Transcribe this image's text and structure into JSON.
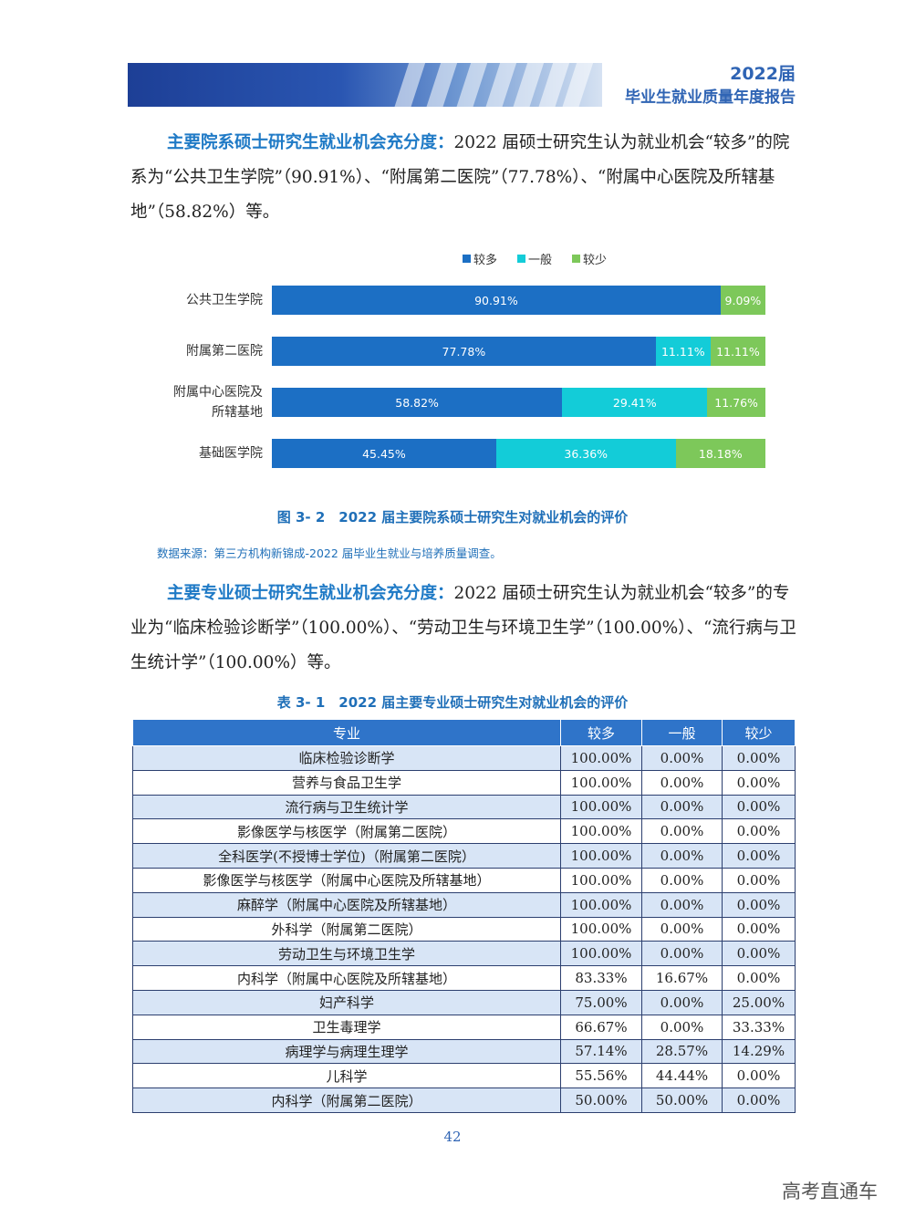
{
  "header": {
    "year": "2022届",
    "title": "毕业生就业质量年度报告"
  },
  "para1": {
    "lead": "主要院系硕士研究生就业机会充分度：",
    "text": "2022 届硕士研究生认为就业机会“较多”的院系为“公共卫生学院”（90.91%）、“附属第二医院”（77.78%）、“附属中心医院及所辖基地”（58.82%）等。"
  },
  "chart_data": {
    "type": "bar",
    "orientation": "horizontal",
    "stacked": true,
    "legend": "top",
    "categories": [
      "公共卫生学院",
      "附属第二医院",
      "附属中心医院及所辖基地",
      "基础医学院"
    ],
    "series": [
      {
        "name": "较多",
        "color": "#1c6fc4",
        "values": [
          90.91,
          77.78,
          58.82,
          45.45
        ],
        "labels": [
          "90.91%",
          "77.78%",
          "58.82%",
          "45.45%"
        ]
      },
      {
        "name": "一般",
        "color": "#13ccd8",
        "values": [
          0,
          11.11,
          29.41,
          36.36
        ],
        "labels": [
          "",
          "11.11%",
          "29.41%",
          "36.36%"
        ]
      },
      {
        "name": "较少",
        "color": "#7dc85a",
        "values": [
          9.09,
          11.11,
          11.76,
          18.18
        ],
        "labels": [
          "9.09%",
          "11.11%",
          "11.76%",
          "18.18%"
        ]
      }
    ],
    "label_lines": [
      [
        "公共卫生学院"
      ],
      [
        "附属第二医院"
      ],
      [
        "附属中心医院及",
        "所辖基地"
      ],
      [
        "基础医学院"
      ]
    ],
    "xlim": [
      0,
      100
    ]
  },
  "figure_caption": "图 3- 2　2022 届主要院系硕士研究生对就业机会的评价",
  "source": "数据来源：第三方机构新锦成-2022 届毕业生就业与培养质量调查。",
  "para2": {
    "lead": "主要专业硕士研究生就业机会充分度：",
    "text": "2022 届硕士研究生认为就业机会“较多”的专业为“临床检验诊断学”（100.00%）、“劳动卫生与环境卫生学”（100.00%）、“流行病与卫生统计学”（100.00%）等。"
  },
  "table_caption": "表 3- 1　2022 届主要专业硕士研究生对就业机会的评价",
  "table": {
    "headers": [
      "专业",
      "较多",
      "一般",
      "较少"
    ],
    "rows": [
      [
        "临床检验诊断学",
        "100.00%",
        "0.00%",
        "0.00%"
      ],
      [
        "营养与食品卫生学",
        "100.00%",
        "0.00%",
        "0.00%"
      ],
      [
        "流行病与卫生统计学",
        "100.00%",
        "0.00%",
        "0.00%"
      ],
      [
        "影像医学与核医学（附属第二医院）",
        "100.00%",
        "0.00%",
        "0.00%"
      ],
      [
        "全科医学(不授博士学位)（附属第二医院）",
        "100.00%",
        "0.00%",
        "0.00%"
      ],
      [
        "影像医学与核医学（附属中心医院及所辖基地）",
        "100.00%",
        "0.00%",
        "0.00%"
      ],
      [
        "麻醉学（附属中心医院及所辖基地）",
        "100.00%",
        "0.00%",
        "0.00%"
      ],
      [
        "外科学（附属第二医院）",
        "100.00%",
        "0.00%",
        "0.00%"
      ],
      [
        "劳动卫生与环境卫生学",
        "100.00%",
        "0.00%",
        "0.00%"
      ],
      [
        "内科学（附属中心医院及所辖基地）",
        "83.33%",
        "16.67%",
        "0.00%"
      ],
      [
        "妇产科学",
        "75.00%",
        "0.00%",
        "25.00%"
      ],
      [
        "卫生毒理学",
        "66.67%",
        "0.00%",
        "33.33%"
      ],
      [
        "病理学与病理生理学",
        "57.14%",
        "28.57%",
        "14.29%"
      ],
      [
        "儿科学",
        "55.56%",
        "44.44%",
        "0.00%"
      ],
      [
        "内科学（附属第二医院）",
        "50.00%",
        "50.00%",
        "0.00%"
      ]
    ]
  },
  "page_number": "42",
  "watermark": "高考直通车"
}
